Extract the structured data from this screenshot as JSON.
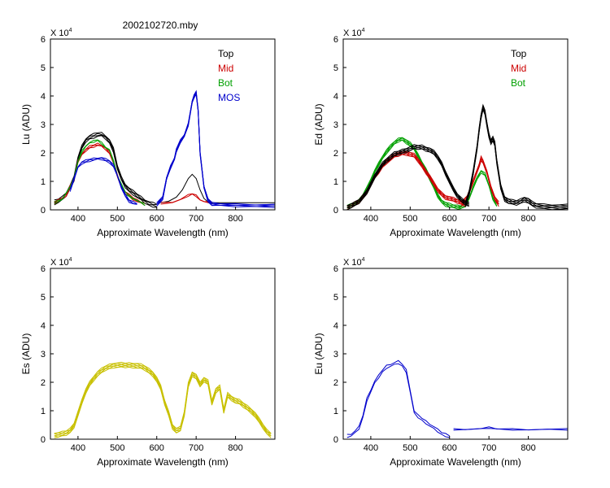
{
  "title": "2002102720.mby",
  "exponent_label": {
    "base": "X 10",
    "power": "4"
  },
  "colors": {
    "Top": "#000000",
    "Mid": "#cc0000",
    "Bot": "#00a000",
    "MOS": "#0000cc",
    "Es": "#c8c000",
    "Eu": "#0000cc"
  },
  "chart_data": [
    {
      "id": "lu",
      "type": "line",
      "ylabel": "Lu (ADU)",
      "xlabel": "Approximate Wavelength (nm)",
      "xlim": [
        330,
        900
      ],
      "ylim": [
        0,
        60000
      ],
      "xticks": [
        400,
        500,
        600,
        700,
        800
      ],
      "yticks": [
        0,
        1,
        2,
        3,
        4,
        5,
        6
      ],
      "legend": [
        "Top",
        "Mid",
        "Bot",
        "MOS"
      ],
      "series": [
        {
          "name": "Top",
          "color": "#000000",
          "copies": 4,
          "spread": 1300,
          "x": [
            340,
            350,
            360,
            370,
            380,
            390,
            400,
            410,
            420,
            430,
            440,
            450,
            460,
            470,
            480,
            490,
            500,
            510,
            520,
            530,
            540,
            550,
            560,
            570,
            580,
            590,
            600
          ],
          "y": [
            2600,
            3200,
            4000,
            5500,
            8000,
            11000,
            18000,
            22000,
            24500,
            25500,
            26000,
            26500,
            26500,
            25500,
            24000,
            21000,
            15000,
            11000,
            8500,
            7000,
            6000,
            5000,
            4000,
            3000,
            2200,
            1800,
            1500
          ]
        },
        {
          "name": "Top",
          "color": "#000000",
          "copies": 1,
          "spread": 0,
          "x": [
            610,
            630,
            650,
            665,
            680,
            690,
            700,
            710,
            720,
            730,
            740,
            760,
            800,
            850,
            900
          ],
          "y": [
            2500,
            3000,
            4500,
            7000,
            11000,
            12500,
            11000,
            7000,
            4000,
            2800,
            2500,
            2500,
            2500,
            2500,
            2500
          ]
        },
        {
          "name": "Mid",
          "color": "#cc0000",
          "copies": 3,
          "spread": 700,
          "x": [
            340,
            350,
            360,
            370,
            380,
            390,
            400,
            410,
            420,
            430,
            440,
            450,
            460,
            470,
            480,
            490,
            500,
            510,
            520,
            530,
            540,
            550,
            560,
            570
          ],
          "y": [
            2600,
            3200,
            4000,
            5200,
            8000,
            11000,
            17000,
            19500,
            21000,
            22000,
            22500,
            23000,
            22500,
            21500,
            20000,
            17000,
            12000,
            8000,
            6000,
            5000,
            4000,
            3200,
            2600,
            2000
          ]
        },
        {
          "name": "Mid",
          "color": "#cc0000",
          "copies": 2,
          "spread": 300,
          "x": [
            610,
            640,
            660,
            680,
            690,
            700,
            710,
            720,
            740
          ],
          "y": [
            2400,
            2700,
            3500,
            5000,
            5600,
            5000,
            3600,
            2800,
            2400
          ]
        },
        {
          "name": "Bot",
          "color": "#00a000",
          "copies": 2,
          "spread": 400,
          "x": [
            340,
            360,
            380,
            390,
            400,
            410,
            420,
            430,
            440,
            450,
            460,
            470,
            480,
            490,
            500,
            520,
            540,
            560,
            570
          ],
          "y": [
            2600,
            3800,
            8000,
            11000,
            17000,
            20500,
            22500,
            23500,
            24000,
            24500,
            23500,
            22000,
            21000,
            17000,
            12000,
            6000,
            4000,
            2500,
            1800
          ]
        },
        {
          "name": "MOS",
          "color": "#0000cc",
          "copies": 3,
          "spread": 700,
          "x": [
            380,
            390,
            400,
            410,
            420,
            430,
            440,
            450,
            460,
            470,
            480,
            490,
            500,
            510,
            520,
            530,
            540,
            550
          ],
          "y": [
            7000,
            11000,
            15000,
            16500,
            17000,
            17500,
            17800,
            18000,
            18000,
            17500,
            17000,
            15500,
            12000,
            8000,
            5000,
            3200,
            2500,
            2000
          ]
        },
        {
          "name": "MOS",
          "color": "#0000cc",
          "copies": 5,
          "spread": 900,
          "x": [
            600,
            615,
            625,
            635,
            645,
            650,
            660,
            670,
            680,
            690,
            695,
            700,
            705,
            710,
            720,
            730,
            740,
            760,
            800,
            850,
            900
          ],
          "y": [
            2000,
            4000,
            11000,
            15000,
            18000,
            21000,
            24000,
            26000,
            30000,
            38000,
            40000,
            41000,
            35000,
            20000,
            8000,
            3500,
            2000,
            1800,
            1600,
            1500,
            1500
          ]
        }
      ]
    },
    {
      "id": "ed",
      "type": "line",
      "ylabel": "Ed  (ADU)",
      "xlabel": "Approximate Wavelength (nm)",
      "xlim": [
        330,
        900
      ],
      "ylim": [
        0,
        60000
      ],
      "xticks": [
        400,
        500,
        600,
        700,
        800
      ],
      "yticks": [
        0,
        1,
        2,
        3,
        4,
        5,
        6
      ],
      "legend": [
        "Top",
        "Mid",
        "Bot"
      ],
      "series": [
        {
          "name": "Bot",
          "color": "#00a000",
          "copies": 5,
          "spread": 1200,
          "x": [
            340,
            350,
            360,
            370,
            380,
            390,
            400,
            410,
            420,
            430,
            440,
            450,
            460,
            470,
            480,
            490,
            500,
            510,
            520,
            530,
            540,
            550,
            560,
            570,
            580,
            590,
            600,
            610,
            620,
            630
          ],
          "y": [
            1000,
            1400,
            2000,
            3000,
            5000,
            7500,
            10000,
            13500,
            16000,
            18500,
            20500,
            22000,
            23500,
            24500,
            25000,
            24000,
            23000,
            21500,
            19000,
            16500,
            14000,
            11000,
            8000,
            5000,
            3000,
            2000,
            1500,
            1200,
            1000,
            900
          ]
        },
        {
          "name": "Bot",
          "color": "#00a000",
          "copies": 3,
          "spread": 800,
          "x": [
            620,
            640,
            650,
            660,
            670,
            680,
            690,
            700,
            710,
            720
          ],
          "y": [
            700,
            1500,
            4000,
            8000,
            11000,
            13500,
            12500,
            8500,
            4000,
            1500
          ]
        },
        {
          "name": "Mid",
          "color": "#cc0000",
          "copies": 6,
          "spread": 1300,
          "x": [
            340,
            350,
            360,
            370,
            380,
            390,
            400,
            410,
            420,
            430,
            440,
            450,
            460,
            470,
            480,
            490,
            500,
            510,
            520,
            530,
            540,
            550,
            560,
            570,
            580,
            590,
            600,
            610,
            620,
            630,
            640
          ],
          "y": [
            1000,
            1400,
            2000,
            3000,
            4500,
            6500,
            9000,
            11500,
            13500,
            15500,
            17000,
            18000,
            19000,
            19500,
            20000,
            20000,
            19500,
            19000,
            17500,
            15500,
            13500,
            11500,
            9000,
            7000,
            5500,
            4500,
            4000,
            3500,
            3000,
            2500,
            2000
          ]
        },
        {
          "name": "Mid",
          "color": "#cc0000",
          "copies": 4,
          "spread": 1200,
          "x": [
            630,
            645,
            655,
            665,
            675,
            680,
            685,
            695,
            705,
            715,
            725
          ],
          "y": [
            2000,
            4500,
            8000,
            12000,
            15500,
            18000,
            17000,
            13000,
            8000,
            4000,
            2000
          ]
        },
        {
          "name": "Top",
          "color": "#000000",
          "copies": 6,
          "spread": 1400,
          "x": [
            340,
            350,
            360,
            370,
            380,
            390,
            400,
            410,
            420,
            430,
            440,
            450,
            460,
            470,
            480,
            490,
            500,
            510,
            520,
            530,
            540,
            550,
            560,
            570,
            580,
            590,
            600,
            610,
            620,
            630,
            640,
            650
          ],
          "y": [
            1000,
            1400,
            2000,
            3000,
            4500,
            6500,
            9000,
            11500,
            14000,
            16000,
            17500,
            18500,
            19500,
            20000,
            20500,
            21000,
            21500,
            22000,
            22000,
            22000,
            21500,
            21000,
            20000,
            18500,
            16000,
            13000,
            10000,
            7000,
            5000,
            3500,
            2500,
            2000
          ]
        },
        {
          "name": "Top",
          "color": "#000000",
          "copies": 6,
          "spread": 1600,
          "x": [
            640,
            650,
            660,
            670,
            675,
            680,
            685,
            690,
            695,
            700,
            705,
            710,
            715,
            720,
            730,
            740,
            750,
            760,
            770,
            780,
            790,
            800,
            810,
            820,
            840,
            860,
            880,
            900
          ],
          "y": [
            2000,
            6000,
            13000,
            22000,
            28000,
            33000,
            36000,
            34000,
            30000,
            26000,
            24000,
            25000,
            23000,
            17000,
            8000,
            4000,
            3000,
            2600,
            2500,
            3000,
            3800,
            3200,
            2000,
            1500,
            1200,
            1100,
            1000,
            1000
          ]
        }
      ]
    },
    {
      "id": "es",
      "type": "line",
      "ylabel": "Es  (ADU)",
      "xlabel": "Approximate Wavelength (nm)",
      "xlim": [
        330,
        900
      ],
      "ylim": [
        0,
        60000
      ],
      "xticks": [
        400,
        500,
        600,
        700,
        800
      ],
      "yticks": [
        0,
        1,
        2,
        3,
        4,
        5,
        6
      ],
      "legend": [],
      "series": [
        {
          "name": "Es",
          "color": "#c8c000",
          "copies": 6,
          "spread": 1600,
          "x": [
            340,
            350,
            360,
            370,
            380,
            390,
            400,
            410,
            420,
            430,
            440,
            450,
            460,
            470,
            480,
            490,
            500,
            510,
            520,
            530,
            540,
            550,
            560,
            570,
            580,
            590,
            600,
            610,
            620,
            630,
            640,
            650,
            660,
            670,
            680,
            690,
            700,
            710,
            720,
            730,
            740,
            750,
            760,
            770,
            780,
            790,
            800,
            810,
            820,
            830,
            840,
            850,
            860,
            870,
            880,
            890
          ],
          "y": [
            1500,
            1500,
            1800,
            2200,
            3000,
            5000,
            9000,
            13000,
            17000,
            19500,
            21500,
            23000,
            24000,
            25000,
            25500,
            26000,
            26000,
            26000,
            26000,
            26000,
            26000,
            25800,
            25500,
            25000,
            24000,
            23000,
            21000,
            18000,
            13000,
            9000,
            4500,
            3000,
            3500,
            9000,
            19000,
            23000,
            22000,
            19000,
            21000,
            20000,
            13000,
            17000,
            18000,
            10000,
            15500,
            14500,
            13500,
            13000,
            12000,
            11000,
            10000,
            8500,
            6500,
            4500,
            2500,
            1500
          ]
        }
      ]
    },
    {
      "id": "eu",
      "type": "line",
      "ylabel": "Eu  (ADU)",
      "xlabel": "Approximate Wavelength (nm)",
      "xlim": [
        330,
        900
      ],
      "ylim": [
        0,
        60000
      ],
      "xticks": [
        400,
        500,
        600,
        700,
        800
      ],
      "yticks": [
        0,
        1,
        2,
        3,
        4,
        5,
        6
      ],
      "legend": [],
      "series": [
        {
          "name": "Eu",
          "color": "#0000cc",
          "copies": 2,
          "spread": 800,
          "x": [
            340,
            350,
            360,
            370,
            380,
            390,
            400,
            410,
            420,
            430,
            440,
            450,
            460,
            470,
            480,
            490,
            500,
            510,
            520,
            530,
            540,
            550,
            560,
            570,
            580,
            590,
            600
          ],
          "y": [
            1200,
            1500,
            2500,
            4000,
            8000,
            14000,
            17000,
            20000,
            22000,
            24000,
            25500,
            26000,
            26500,
            27000,
            26000,
            24000,
            17000,
            9500,
            8000,
            7000,
            6000,
            5000,
            4000,
            3000,
            2000,
            1500,
            1000
          ]
        },
        {
          "name": "Eu",
          "color": "#0000cc",
          "copies": 2,
          "spread": 200,
          "x": [
            610,
            640,
            680,
            700,
            720,
            760,
            800,
            850,
            900
          ],
          "y": [
            3500,
            3500,
            3600,
            4000,
            3600,
            3500,
            3400,
            3400,
            3400
          ]
        }
      ]
    }
  ]
}
